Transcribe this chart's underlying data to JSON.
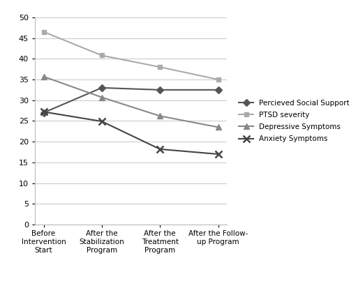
{
  "x_labels": [
    "Before\nIntervention\nStart",
    "After the\nStabilization\nProgram",
    "After the\nTreatment\nProgram",
    "After the Follow-\nup Program"
  ],
  "series": {
    "Percieved Social Support": {
      "values": [
        27,
        33,
        32.5,
        32.5
      ],
      "color": "#555555",
      "marker": "D",
      "linestyle": "-",
      "linewidth": 1.5,
      "markersize": 5
    },
    "PTSD severity": {
      "values": [
        46.5,
        40.8,
        38,
        35
      ],
      "color": "#aaaaaa",
      "marker": "s",
      "linestyle": "-",
      "linewidth": 1.5,
      "markersize": 5
    },
    "Depressive Symptoms": {
      "values": [
        35.7,
        30.7,
        26.2,
        23.5
      ],
      "color": "#888888",
      "marker": "^",
      "linestyle": "-",
      "linewidth": 1.5,
      "markersize": 6
    },
    "Anxiety Symptoms": {
      "values": [
        27.2,
        24.9,
        18.2,
        17.0
      ],
      "color": "#444444",
      "marker": "x",
      "linestyle": "-",
      "linewidth": 1.5,
      "markersize": 7,
      "markeredgewidth": 1.8
    }
  },
  "ylim": [
    0,
    50
  ],
  "yticks": [
    0,
    5,
    10,
    15,
    20,
    25,
    30,
    35,
    40,
    45,
    50
  ],
  "background_color": "#ffffff",
  "grid_color": "#cccccc"
}
